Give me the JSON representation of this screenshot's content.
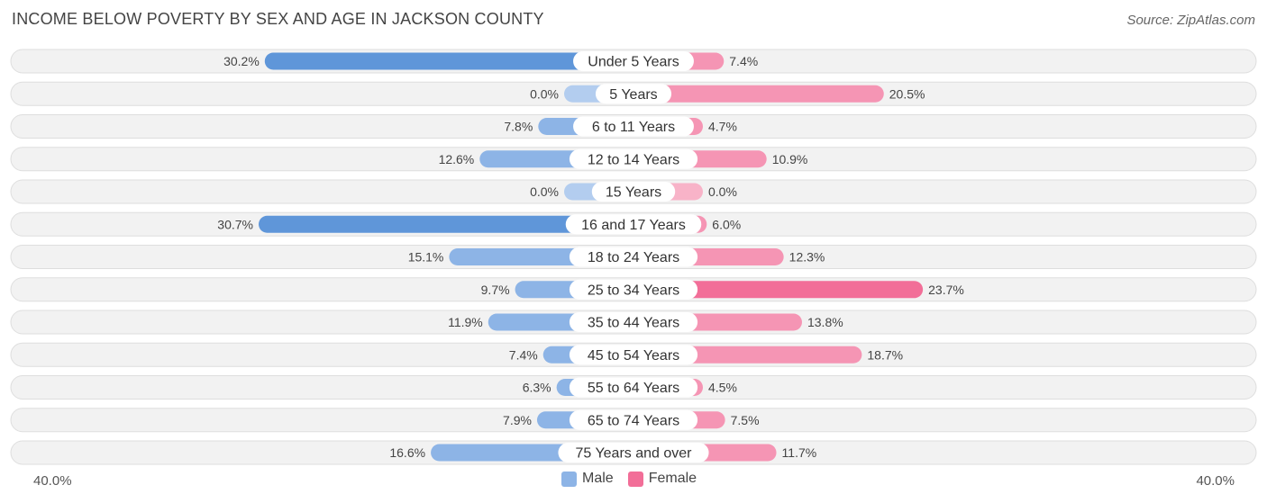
{
  "title": "INCOME BELOW POVERTY BY SEX AND AGE IN JACKSON COUNTY",
  "source": "Source: ZipAtlas.com",
  "colors": {
    "male": "#8db4e6",
    "male_strong": "#5f96d9",
    "male_light": "#b3cdef",
    "female": "#f595b4",
    "female_strong": "#f26e98",
    "female_light": "#f8b3c8",
    "row_bg": "#f2f2f2",
    "row_border": "#dedede"
  },
  "chart_data": {
    "type": "bar",
    "orientation": "horizontal-diverging",
    "categories": [
      "Under 5 Years",
      "5 Years",
      "6 to 11 Years",
      "12 to 14 Years",
      "15 Years",
      "16 and 17 Years",
      "18 to 24 Years",
      "25 to 34 Years",
      "35 to 44 Years",
      "45 to 54 Years",
      "55 to 64 Years",
      "65 to 74 Years",
      "75 Years and over"
    ],
    "series": [
      {
        "name": "Male",
        "values": [
          30.2,
          0.0,
          7.8,
          12.6,
          0.0,
          30.7,
          15.1,
          9.7,
          11.9,
          7.4,
          6.3,
          7.9,
          16.6
        ],
        "labels": [
          "30.2%",
          "0.0%",
          "7.8%",
          "12.6%",
          "0.0%",
          "30.7%",
          "15.1%",
          "9.7%",
          "11.9%",
          "7.4%",
          "6.3%",
          "7.9%",
          "16.6%"
        ]
      },
      {
        "name": "Female",
        "values": [
          7.4,
          20.5,
          4.7,
          10.9,
          0.0,
          6.0,
          12.3,
          23.7,
          13.8,
          18.7,
          4.5,
          7.5,
          11.7
        ],
        "labels": [
          "7.4%",
          "20.5%",
          "4.7%",
          "10.9%",
          "0.0%",
          "6.0%",
          "12.3%",
          "23.7%",
          "13.8%",
          "18.7%",
          "4.5%",
          "7.5%",
          "11.7%"
        ]
      }
    ],
    "xlim": [
      -40,
      40
    ],
    "axis_labels": {
      "left": "40.0%",
      "right": "40.0%"
    },
    "legend": {
      "position": "bottom-center",
      "items": [
        "Male",
        "Female"
      ]
    }
  }
}
